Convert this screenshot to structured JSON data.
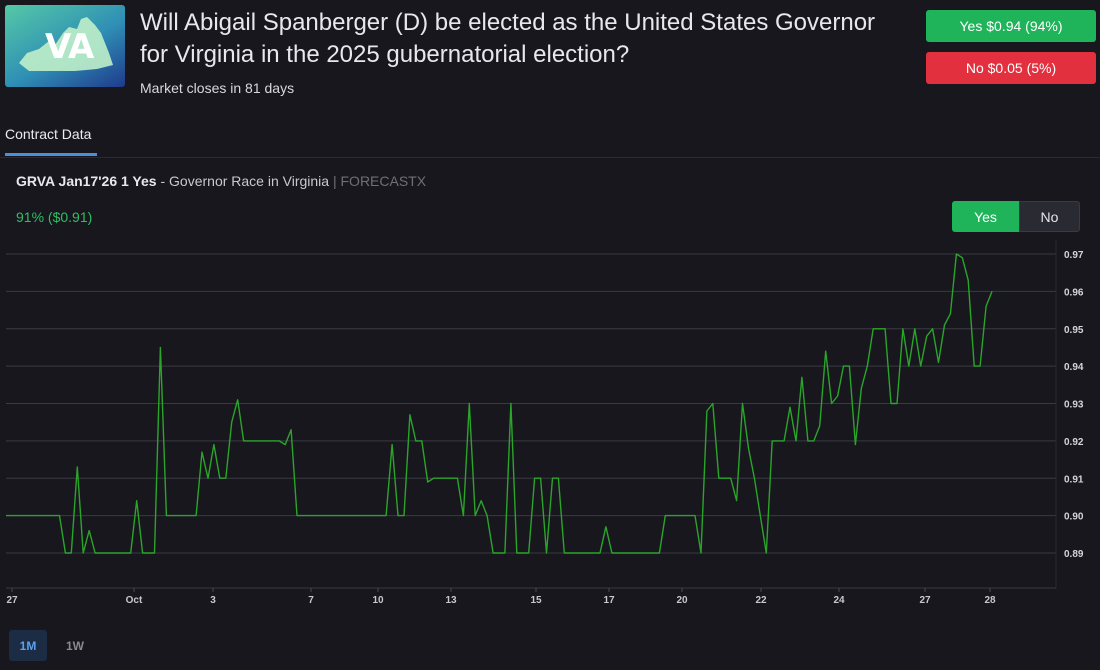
{
  "market": {
    "logo_text": "VA",
    "title": "Will Abigail Spanberger (D) be elected as the United States Governor for Virginia in the 2025 gubernatorial election?",
    "closes": "Market closes in 81 days",
    "yes_label": "Yes $0.94 (94%)",
    "no_label": "No $0.05 (5%)"
  },
  "tabs": {
    "contract_data": "Contract Data"
  },
  "contract": {
    "code": "GRVA Jan17'26 1 Yes",
    "dash": " - ",
    "name": "Governor Race in Virginia",
    "separator": " | ",
    "source": "FORECASTX",
    "price": "91% ($0.91)"
  },
  "toggle": {
    "yes": "Yes",
    "no": "No"
  },
  "ranges": {
    "one_month": "1M",
    "one_week": "1W"
  },
  "colors": {
    "line": "#2aa52a",
    "yes": "#1fb45a",
    "no": "#e3303f",
    "accent": "#4a90d9"
  },
  "chart_data": {
    "type": "line",
    "ylim": [
      0.88,
      0.975
    ],
    "yticks": [
      0.89,
      0.9,
      0.91,
      0.92,
      0.93,
      0.94,
      0.95,
      0.96,
      0.97
    ],
    "xticks": [
      "27",
      "Oct",
      "3",
      "7",
      "10",
      "13",
      "15",
      "17",
      "20",
      "22",
      "24",
      "27",
      "28"
    ],
    "grid": true,
    "series": [
      {
        "values": [
          0.9,
          0.9,
          0.9,
          0.9,
          0.9,
          0.9,
          0.9,
          0.9,
          0.9,
          0.9,
          0.89,
          0.89,
          0.913,
          0.89,
          0.896,
          0.89,
          0.89,
          0.89,
          0.89,
          0.89,
          0.89,
          0.89,
          0.904,
          0.89,
          0.89,
          0.89,
          0.945,
          0.9,
          0.9,
          0.9,
          0.9,
          0.9,
          0.9,
          0.917,
          0.91,
          0.919,
          0.91,
          0.91,
          0.925,
          0.931,
          0.92,
          0.92,
          0.92,
          0.92,
          0.92,
          0.92,
          0.92,
          0.919,
          0.923,
          0.9,
          0.9,
          0.9,
          0.9,
          0.9,
          0.9,
          0.9,
          0.9,
          0.9,
          0.9,
          0.9,
          0.9,
          0.9,
          0.9,
          0.9,
          0.9,
          0.919,
          0.9,
          0.9,
          0.927,
          0.92,
          0.92,
          0.909,
          0.91,
          0.91,
          0.91,
          0.91,
          0.91,
          0.9,
          0.93,
          0.9,
          0.904,
          0.9,
          0.89,
          0.89,
          0.89,
          0.93,
          0.89,
          0.89,
          0.89,
          0.91,
          0.91,
          0.89,
          0.91,
          0.91,
          0.89,
          0.89,
          0.89,
          0.89,
          0.89,
          0.89,
          0.89,
          0.897,
          0.89,
          0.89,
          0.89,
          0.89,
          0.89,
          0.89,
          0.89,
          0.89,
          0.89,
          0.9,
          0.9,
          0.9,
          0.9,
          0.9,
          0.9,
          0.89,
          0.928,
          0.93,
          0.91,
          0.91,
          0.91,
          0.904,
          0.93,
          0.918,
          0.91,
          0.9,
          0.89,
          0.92,
          0.92,
          0.92,
          0.929,
          0.92,
          0.937,
          0.92,
          0.92,
          0.924,
          0.944,
          0.93,
          0.932,
          0.94,
          0.94,
          0.919,
          0.934,
          0.94,
          0.95,
          0.95,
          0.95,
          0.93,
          0.93,
          0.95,
          0.94,
          0.95,
          0.94,
          0.948,
          0.95,
          0.941,
          0.951,
          0.954,
          0.97,
          0.969,
          0.963,
          0.94,
          0.94,
          0.956,
          0.96
        ]
      }
    ]
  }
}
